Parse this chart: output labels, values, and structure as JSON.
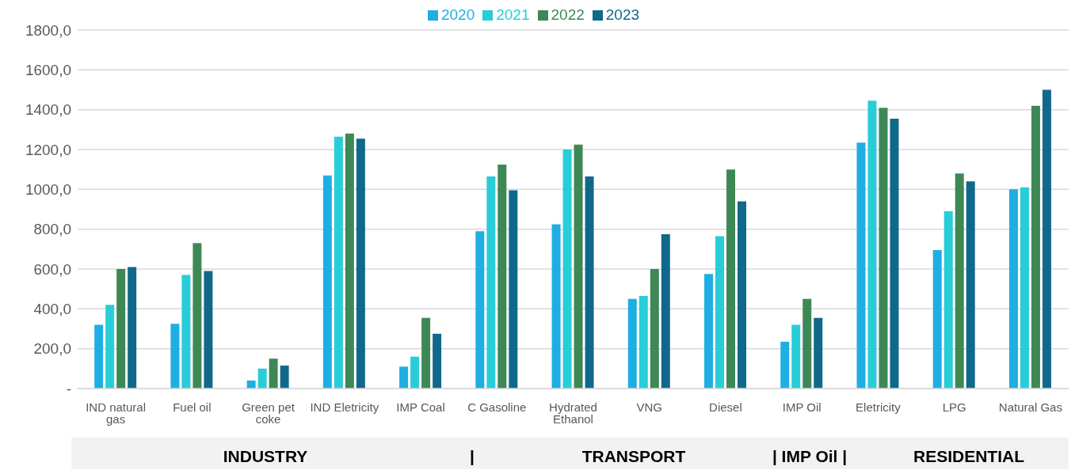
{
  "chart_data": {
    "type": "bar",
    "categories": [
      "IND natural gas",
      "Fuel oil",
      "Green pet coke",
      "IND Eletricity",
      "IMP Coal",
      "C Gasoline",
      "Hydrated Ethanol",
      "VNG",
      "Diesel",
      "IMP Oil",
      "Eletricity",
      "LPG",
      "Natural Gas"
    ],
    "series": [
      {
        "name": "2020",
        "color": "#1eaee3",
        "values": [
          320,
          325,
          40,
          1070,
          110,
          790,
          825,
          450,
          575,
          235,
          1235,
          695,
          1000
        ]
      },
      {
        "name": "2021",
        "color": "#28cdd8",
        "values": [
          420,
          570,
          100,
          1265,
          160,
          1065,
          1200,
          465,
          765,
          320,
          1445,
          890,
          1010
        ]
      },
      {
        "name": "2022",
        "color": "#3e8856",
        "values": [
          600,
          730,
          150,
          1280,
          355,
          1125,
          1225,
          600,
          1100,
          450,
          1410,
          1080,
          1420
        ]
      },
      {
        "name": "2023",
        "color": "#10698b",
        "values": [
          610,
          590,
          115,
          1255,
          275,
          995,
          1065,
          775,
          940,
          355,
          1355,
          1040,
          1500
        ]
      }
    ],
    "ylim": [
      0,
      1800
    ],
    "yticks": [
      {
        "value": 0,
        "label": "-"
      },
      {
        "value": 200,
        "label": "200,0"
      },
      {
        "value": 400,
        "label": "400,0"
      },
      {
        "value": 600,
        "label": "600,0"
      },
      {
        "value": 800,
        "label": "800,0"
      },
      {
        "value": 1000,
        "label": "1000,0"
      },
      {
        "value": 1200,
        "label": "1200,0"
      },
      {
        "value": 1400,
        "label": "1400,0"
      },
      {
        "value": 1600,
        "label": "1600,0"
      },
      {
        "value": 1800,
        "label": "1800,0"
      }
    ],
    "grid": "y",
    "legend": "top",
    "annotations": [
      "INDUSTRY",
      "|",
      "TRANSPORT",
      "| IMP Oil |",
      "RESIDENTIAL"
    ]
  }
}
